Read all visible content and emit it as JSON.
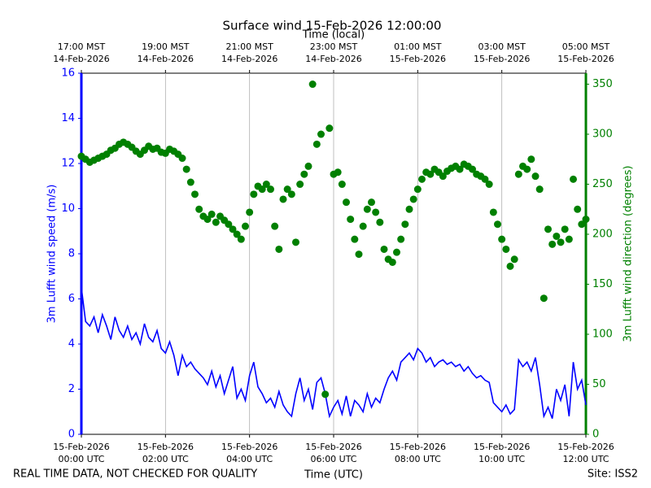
{
  "chart_data": {
    "type": "line",
    "title": "Surface wind 15-Feb-2026 12:00:00",
    "top_axis_label": "Time (local)",
    "xlabel": "Time (UTC)",
    "footer_left": "REAL TIME DATA, NOT CHECKED FOR QUALITY",
    "footer_right": "Site: ISS2",
    "grid_x": true,
    "xlim": [
      0,
      12
    ],
    "xticks": [
      {
        "value": 0,
        "label": "15-Feb-2026\n00:00 UTC"
      },
      {
        "value": 2,
        "label": "15-Feb-2026\n02:00 UTC"
      },
      {
        "value": 4,
        "label": "15-Feb-2026\n04:00 UTC"
      },
      {
        "value": 6,
        "label": "15-Feb-2026\n06:00 UTC"
      },
      {
        "value": 8,
        "label": "15-Feb-2026\n08:00 UTC"
      },
      {
        "value": 10,
        "label": "15-Feb-2026\n10:00 UTC"
      },
      {
        "value": 12,
        "label": "15-Feb-2026\n12:00 UTC"
      }
    ],
    "top_xticks": [
      {
        "value": 0,
        "label": "17:00 MST\n14-Feb-2026"
      },
      {
        "value": 2,
        "label": "19:00 MST\n14-Feb-2026"
      },
      {
        "value": 4,
        "label": "21:00 MST\n14-Feb-2026"
      },
      {
        "value": 6,
        "label": "23:00 MST\n14-Feb-2026"
      },
      {
        "value": 8,
        "label": "01:00 MST\n15-Feb-2026"
      },
      {
        "value": 10,
        "label": "03:00 MST\n15-Feb-2026"
      },
      {
        "value": 12,
        "label": "05:00 MST\n15-Feb-2026"
      }
    ],
    "ylim": [
      0,
      16
    ],
    "yticks": [
      0,
      2,
      4,
      6,
      8,
      10,
      12,
      14,
      16
    ],
    "y2lim": [
      0,
      361
    ],
    "y2ticks": [
      0,
      50,
      100,
      150,
      200,
      250,
      300,
      350
    ],
    "x": [
      0,
      0.1,
      0.2,
      0.3,
      0.4,
      0.5,
      0.6,
      0.7,
      0.8,
      0.9,
      1,
      1.1,
      1.2,
      1.3,
      1.4,
      1.5,
      1.6,
      1.7,
      1.8,
      1.9,
      2,
      2.1,
      2.2,
      2.3,
      2.4,
      2.5,
      2.6,
      2.7,
      2.8,
      2.9,
      3,
      3.1,
      3.2,
      3.3,
      3.4,
      3.5,
      3.6,
      3.7,
      3.8,
      3.9,
      4,
      4.1,
      4.2,
      4.3,
      4.4,
      4.5,
      4.6,
      4.7,
      4.8,
      4.9,
      5,
      5.1,
      5.2,
      5.3,
      5.4,
      5.5,
      5.6,
      5.7,
      5.8,
      5.9,
      6,
      6.1,
      6.2,
      6.3,
      6.4,
      6.5,
      6.6,
      6.7,
      6.8,
      6.9,
      7,
      7.1,
      7.2,
      7.3,
      7.4,
      7.5,
      7.6,
      7.7,
      7.8,
      7.9,
      8,
      8.1,
      8.2,
      8.3,
      8.4,
      8.5,
      8.6,
      8.7,
      8.8,
      8.9,
      9,
      9.1,
      9.2,
      9.3,
      9.4,
      9.5,
      9.6,
      9.7,
      9.8,
      9.9,
      10,
      10.1,
      10.2,
      10.3,
      10.4,
      10.5,
      10.6,
      10.7,
      10.8,
      10.9,
      11,
      11.1,
      11.2,
      11.3,
      11.4,
      11.5,
      11.6,
      11.7,
      11.8,
      11.9,
      12
    ],
    "series": [
      {
        "name": "3m Lufft wind speed (m/s)",
        "color": "#0000ff",
        "type": "line",
        "values": [
          6.5,
          5.0,
          4.8,
          5.2,
          4.5,
          5.3,
          4.8,
          4.2,
          5.2,
          4.6,
          4.3,
          4.8,
          4.2,
          4.5,
          4.0,
          4.9,
          4.3,
          4.1,
          4.6,
          3.8,
          3.6,
          4.1,
          3.5,
          2.6,
          3.5,
          3.0,
          3.2,
          2.9,
          2.7,
          2.5,
          2.2,
          2.8,
          2.1,
          2.6,
          1.8,
          2.4,
          3.0,
          1.6,
          2.0,
          1.5,
          2.6,
          3.2,
          2.1,
          1.8,
          1.4,
          1.6,
          1.2,
          1.9,
          1.3,
          1.0,
          0.8,
          1.8,
          2.5,
          1.5,
          2.0,
          1.1,
          2.3,
          2.5,
          1.8,
          0.8,
          1.2,
          1.5,
          0.9,
          1.7,
          0.8,
          1.5,
          1.3,
          1.0,
          1.8,
          1.2,
          1.6,
          1.4,
          2.0,
          2.5,
          2.8,
          2.4,
          3.2,
          3.4,
          3.6,
          3.3,
          3.8,
          3.6,
          3.2,
          3.4,
          3.0,
          3.2,
          3.3,
          3.1,
          3.2,
          3.0,
          3.1,
          2.8,
          3.0,
          2.7,
          2.5,
          2.6,
          2.4,
          2.3,
          1.4,
          1.2,
          1.0,
          1.3,
          0.9,
          1.1,
          3.3,
          3.0,
          3.2,
          2.8,
          3.4,
          2.2,
          0.8,
          1.2,
          0.7,
          2.0,
          1.5,
          2.2,
          0.8,
          3.2,
          2.0,
          2.4,
          1.3
        ]
      },
      {
        "name": "3m Lufft wind direction (degrees)",
        "color": "#008000",
        "type": "scatter",
        "axis": "y2",
        "values": [
          278,
          275,
          272,
          274,
          276,
          278,
          280,
          284,
          286,
          290,
          292,
          290,
          287,
          283,
          280,
          284,
          288,
          285,
          286,
          282,
          281,
          285,
          283,
          280,
          276,
          265,
          252,
          240,
          225,
          218,
          215,
          220,
          212,
          218,
          214,
          210,
          205,
          200,
          195,
          208,
          222,
          240,
          248,
          245,
          250,
          245,
          208,
          185,
          235,
          245,
          240,
          192,
          250,
          260,
          268,
          350,
          290,
          300,
          40,
          306,
          260,
          262,
          250,
          232,
          215,
          195,
          180,
          208,
          225,
          232,
          222,
          212,
          185,
          175,
          172,
          182,
          195,
          210,
          225,
          235,
          245,
          255,
          262,
          260,
          265,
          262,
          258,
          263,
          266,
          268,
          265,
          270,
          268,
          265,
          260,
          258,
          255,
          250,
          222,
          210,
          195,
          185,
          168,
          175,
          260,
          268,
          265,
          275,
          258,
          245,
          136,
          205,
          190,
          198,
          192,
          205,
          195,
          255,
          225,
          210,
          215
        ]
      }
    ]
  }
}
